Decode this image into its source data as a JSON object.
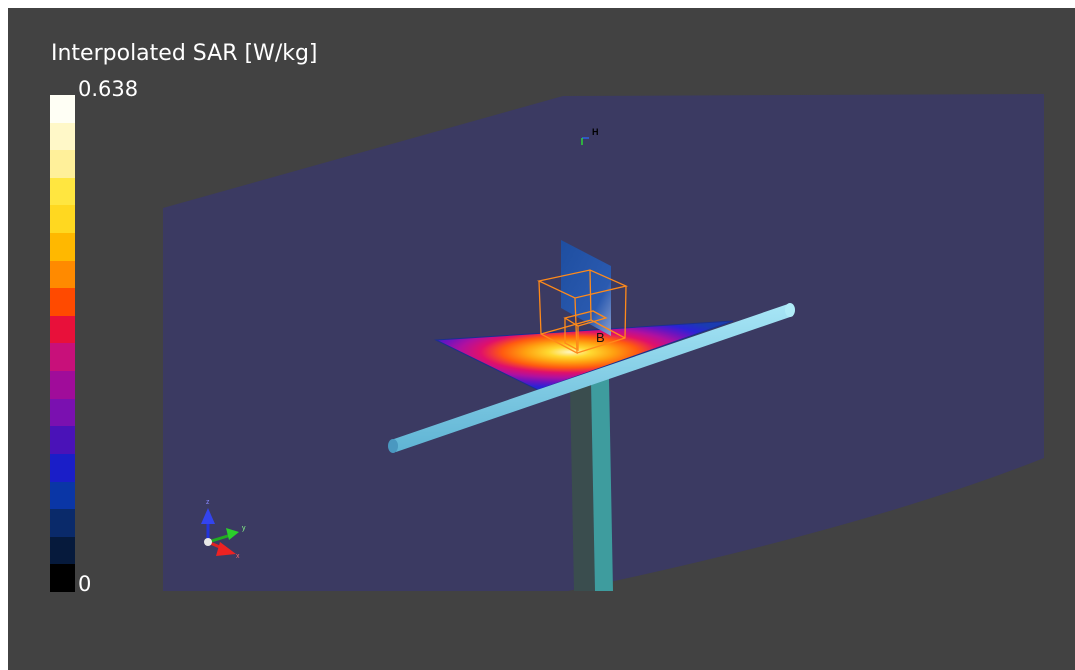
{
  "legend": {
    "title": "Interpolated SAR [W/kg]",
    "max_label": "0.638",
    "min_label": "0",
    "colors": [
      "#fffff5",
      "#fff8c8",
      "#fff09a",
      "#ffe640",
      "#ffd820",
      "#ffb800",
      "#ff8a00",
      "#ff4a00",
      "#e8103a",
      "#c8107a",
      "#a00c9a",
      "#7a10b0",
      "#4a12b8",
      "#1a1ec8",
      "#0a36a6",
      "#0a2a6a",
      "#061a3c",
      "#000000"
    ]
  },
  "scene": {
    "probe_label": "H",
    "source_label": "B",
    "axes": {
      "z_label": "z",
      "y_label": "y",
      "x_label": "x"
    },
    "colors": {
      "background": "#424242",
      "domain": "#3b3a62",
      "rod": "#7fd0ea",
      "post_dark": "#3a4d4e",
      "post_light": "#3e9c9e",
      "box_outline": "#ff8a1a",
      "vertical_plane": "#1c4d9e"
    }
  }
}
